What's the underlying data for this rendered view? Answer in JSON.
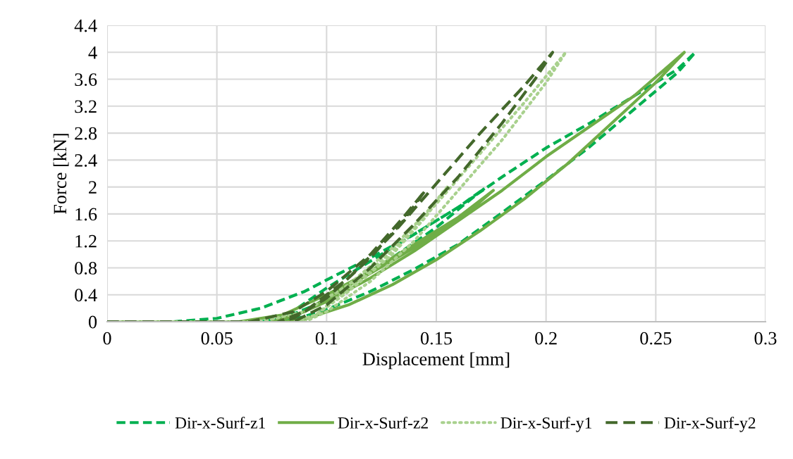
{
  "chart_data": {
    "type": "line",
    "xlabel": "Displacement [mm]",
    "ylabel": "Force [kN]",
    "xlim": [
      0,
      0.3
    ],
    "xticks": [
      0,
      0.05,
      0.1,
      0.15,
      0.2,
      0.25,
      0.3
    ],
    "ylim": [
      0,
      4.4
    ],
    "yticks": [
      0,
      0.4,
      0.8,
      1.2,
      1.6,
      2,
      2.4,
      2.8,
      3.2,
      3.6,
      4,
      4.4
    ],
    "grid": true,
    "legend": "bottom",
    "marker": "none",
    "series": [
      {
        "name": "Dir-x-Surf-z1",
        "color": "#00b050",
        "line_style": "dashed",
        "x": [
          0,
          0.03,
          0.05,
          0.07,
          0.09,
          0.1,
          0.12,
          0.14,
          0.16,
          0.172,
          0.165,
          0.15,
          0.13,
          0.11,
          0.095,
          0.08,
          0.07,
          0.08,
          0.1,
          0.12,
          0.14,
          0.16,
          0.18,
          0.2,
          0.22,
          0.24,
          0.26,
          0.268,
          0.26,
          0.24,
          0.22,
          0.2,
          0.18,
          0.16,
          0.14,
          0.12,
          0.1,
          0.085,
          0.078
        ],
        "values": [
          0,
          0,
          0.05,
          0.2,
          0.45,
          0.62,
          0.95,
          1.3,
          1.7,
          1.98,
          1.8,
          1.4,
          0.95,
          0.55,
          0.25,
          0.05,
          0,
          0.05,
          0.5,
          0.9,
          1.3,
          1.7,
          2.15,
          2.58,
          2.95,
          3.35,
          3.75,
          4,
          3.7,
          3.15,
          2.6,
          2.1,
          1.62,
          1.15,
          0.78,
          0.45,
          0.18,
          0.03,
          0
        ]
      },
      {
        "name": "Dir-x-Surf-z2",
        "color": "#70ad47",
        "line_style": "solid",
        "x": [
          0,
          0.06,
          0.08,
          0.1,
          0.12,
          0.14,
          0.16,
          0.176,
          0.16,
          0.14,
          0.12,
          0.1,
          0.085,
          0.075,
          0.09,
          0.1,
          0.12,
          0.14,
          0.16,
          0.18,
          0.2,
          0.22,
          0.24,
          0.263,
          0.25,
          0.23,
          0.21,
          0.19,
          0.17,
          0.15,
          0.13,
          0.11,
          0.09,
          0.08
        ],
        "values": [
          0,
          0,
          0.1,
          0.4,
          0.75,
          1.15,
          1.55,
          1.95,
          1.5,
          1.05,
          0.65,
          0.3,
          0.08,
          0,
          0.15,
          0.35,
          0.72,
          1.1,
          1.5,
          1.95,
          2.45,
          2.9,
          3.35,
          4,
          3.55,
          2.95,
          2.35,
          1.82,
          1.35,
          0.92,
          0.55,
          0.25,
          0.04,
          0
        ]
      },
      {
        "name": "Dir-x-Surf-y1",
        "color": "#a9d18e",
        "line_style": "dotted",
        "x": [
          0,
          0.07,
          0.09,
          0.11,
          0.13,
          0.145,
          0.155,
          0.145,
          0.13,
          0.11,
          0.095,
          0.085,
          0.095,
          0.11,
          0.13,
          0.15,
          0.17,
          0.19,
          0.209,
          0.2,
          0.18,
          0.16,
          0.14,
          0.12,
          0.1,
          0.09
        ],
        "values": [
          0,
          0,
          0.15,
          0.55,
          1.1,
          1.6,
          2,
          1.55,
          1,
          0.45,
          0.1,
          0,
          0.1,
          0.5,
          1.05,
          1.75,
          2.5,
          3.25,
          4,
          3.55,
          2.7,
          1.95,
          1.2,
          0.6,
          0.15,
          0
        ]
      },
      {
        "name": "Dir-x-Surf-y2",
        "color": "#43682b",
        "line_style": "longdash",
        "x": [
          0,
          0.065,
          0.085,
          0.1,
          0.12,
          0.135,
          0.145,
          0.135,
          0.12,
          0.1,
          0.085,
          0.078,
          0.09,
          0.11,
          0.13,
          0.15,
          0.17,
          0.19,
          0.203,
          0.195,
          0.18,
          0.16,
          0.14,
          0.12,
          0.1,
          0.085
        ],
        "values": [
          0,
          0,
          0.15,
          0.45,
          1,
          1.55,
          1.95,
          1.5,
          0.95,
          0.35,
          0.05,
          0,
          0.15,
          0.65,
          1.3,
          2.05,
          2.8,
          3.5,
          4,
          3.6,
          2.95,
          2.15,
          1.45,
          0.8,
          0.25,
          0
        ]
      }
    ]
  }
}
